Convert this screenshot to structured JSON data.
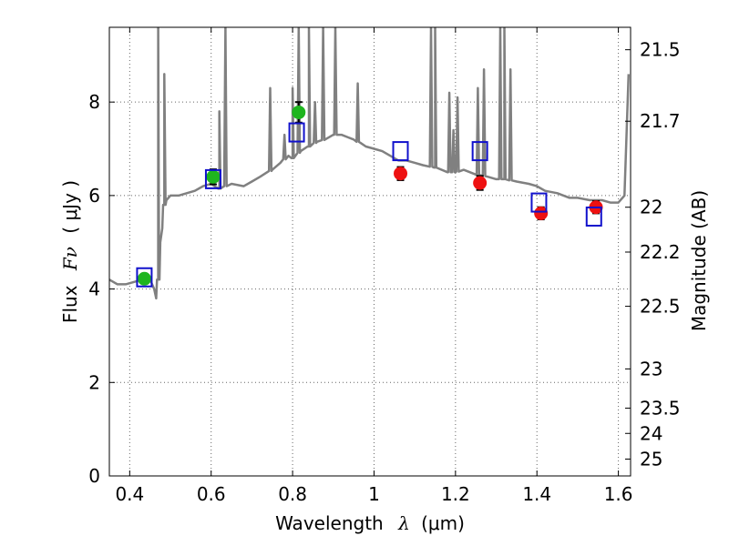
{
  "chart_data": {
    "type": "scatter",
    "title": "",
    "xlabel_text": "Wavelength",
    "xlabel_symbol": "λ",
    "xlabel_unit": "(μm)",
    "ylabel_text": "Flux",
    "ylabel_symbol": "Fν",
    "ylabel_unit": "( μJy )",
    "y2label": "Magnitude (AB)",
    "xlim": [
      0.35,
      1.63
    ],
    "ylim": [
      0,
      9.6
    ],
    "grid": true,
    "xticks": [
      0.4,
      0.6,
      0.8,
      1.0,
      1.2,
      1.4,
      1.6
    ],
    "xtick_labels": [
      "0.4",
      "0.6",
      "0.8",
      "1",
      "1.2",
      "1.4",
      "1.6"
    ],
    "yticks": [
      0,
      2,
      4,
      6,
      8
    ],
    "ytick_labels": [
      "0",
      "2",
      "4",
      "6",
      "8"
    ],
    "y2ticks": [
      {
        "label": "21.5",
        "flux": 9.12
      },
      {
        "label": "21.7",
        "flux": 7.59
      },
      {
        "label": "22",
        "flux": 5.75
      },
      {
        "label": "22.2",
        "flux": 4.79
      },
      {
        "label": "22.5",
        "flux": 3.63
      },
      {
        "label": "23",
        "flux": 2.29
      },
      {
        "label": "23.5",
        "flux": 1.45
      },
      {
        "label": "24",
        "flux": 0.91
      },
      {
        "label": "25",
        "flux": 0.36
      }
    ],
    "colors": {
      "spectrum": "#808080",
      "optical_points": "#1fb51f",
      "nir_points": "#ee1111",
      "model_boxes": "#1111cc",
      "errorbar": "#000000",
      "grid": "#666666"
    },
    "series": [
      {
        "name": "Model spectrum",
        "kind": "line",
        "x": [
          0.35,
          0.37,
          0.39,
          0.41,
          0.43,
          0.45,
          0.46,
          0.465,
          0.47,
          0.472,
          0.475,
          0.48,
          0.485,
          0.49,
          0.5,
          0.52,
          0.54,
          0.56,
          0.58,
          0.6,
          0.62,
          0.65,
          0.68,
          0.7,
          0.72,
          0.75,
          0.77,
          0.79,
          0.8,
          0.82,
          0.84,
          0.86,
          0.88,
          0.9,
          0.92,
          0.95,
          0.98,
          1.0,
          1.02,
          1.04,
          1.06,
          1.08,
          1.1,
          1.12,
          1.15,
          1.18,
          1.2,
          1.22,
          1.25,
          1.28,
          1.3,
          1.32,
          1.35,
          1.38,
          1.4,
          1.42,
          1.45,
          1.48,
          1.5,
          1.53,
          1.56,
          1.58,
          1.6,
          1.615,
          1.625
        ],
        "y": [
          4.2,
          4.1,
          4.1,
          4.15,
          4.2,
          4.2,
          4.0,
          3.8,
          4.2,
          4.6,
          5.0,
          5.3,
          5.8,
          5.9,
          6.0,
          6.0,
          6.05,
          6.1,
          6.2,
          6.25,
          6.15,
          6.25,
          6.2,
          6.3,
          6.4,
          6.55,
          6.7,
          6.85,
          6.8,
          6.95,
          7.05,
          7.15,
          7.2,
          7.3,
          7.3,
          7.2,
          7.05,
          7.0,
          6.95,
          6.85,
          6.75,
          6.75,
          6.7,
          6.65,
          6.6,
          6.5,
          6.5,
          6.55,
          6.45,
          6.4,
          6.35,
          6.35,
          6.3,
          6.25,
          6.2,
          6.1,
          6.05,
          5.95,
          5.95,
          5.9,
          5.9,
          5.85,
          5.85,
          6.0,
          8.6
        ]
      },
      {
        "name": "Emission lines",
        "kind": "spikes",
        "x": [
          0.47,
          0.485,
          0.62,
          0.635,
          0.745,
          0.78,
          0.8,
          0.815,
          0.84,
          0.855,
          0.875,
          0.905,
          0.96,
          1.14,
          1.15,
          1.185,
          1.195,
          1.205,
          1.255,
          1.27,
          1.31,
          1.32,
          1.335
        ],
        "y": [
          9.6,
          8.6,
          7.8,
          9.6,
          8.3,
          7.3,
          8.3,
          9.6,
          9.6,
          8.0,
          9.6,
          9.6,
          8.4,
          9.6,
          9.6,
          8.2,
          7.4,
          8.1,
          8.3,
          8.7,
          9.6,
          9.6,
          8.7
        ]
      },
      {
        "name": "Optical photometry",
        "kind": "points",
        "x": [
          0.436,
          0.605,
          0.815
        ],
        "y": [
          4.22,
          6.4,
          7.78
        ],
        "yerr": [
          0.1,
          0.16,
          0.22
        ]
      },
      {
        "name": "NIR photometry",
        "kind": "points",
        "x": [
          1.065,
          1.26,
          1.41,
          1.545
        ],
        "y": [
          6.47,
          6.27,
          5.62,
          5.75
        ],
        "yerr": [
          0.14,
          0.15,
          0.13,
          0.13
        ]
      },
      {
        "name": "Model photometry",
        "kind": "boxes",
        "x": [
          0.436,
          0.605,
          0.81,
          1.065,
          1.26,
          1.405,
          1.54
        ],
        "y": [
          4.25,
          6.35,
          7.35,
          6.95,
          6.95,
          5.85,
          5.55
        ]
      }
    ]
  }
}
